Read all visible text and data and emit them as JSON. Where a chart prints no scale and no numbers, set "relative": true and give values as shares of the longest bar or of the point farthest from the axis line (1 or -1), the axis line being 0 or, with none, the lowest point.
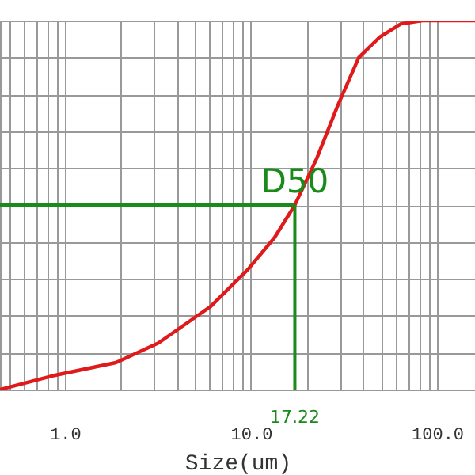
{
  "chart_data": {
    "type": "line",
    "xlabel": "Size(um)",
    "log": "x",
    "relative": true,
    "grid": true,
    "marker": "none",
    "line_style": "solid",
    "xlim": [
      0.448,
      160
    ],
    "xticks": [
      {
        "value": 0.5,
        "label": null
      },
      {
        "value": 0.6,
        "label": null
      },
      {
        "value": 0.7,
        "label": null
      },
      {
        "value": 0.8,
        "label": null
      },
      {
        "value": 0.9,
        "label": null
      },
      {
        "value": 1,
        "label": "1.0"
      },
      {
        "value": 2,
        "label": null
      },
      {
        "value": 3,
        "label": null
      },
      {
        "value": 4,
        "label": null
      },
      {
        "value": 5,
        "label": null
      },
      {
        "value": 6,
        "label": null
      },
      {
        "value": 7,
        "label": null
      },
      {
        "value": 8,
        "label": null
      },
      {
        "value": 9,
        "label": null
      },
      {
        "value": 10,
        "label": "10.0"
      },
      {
        "value": 20,
        "label": null
      },
      {
        "value": 30,
        "label": null
      },
      {
        "value": 40,
        "label": null
      },
      {
        "value": 50,
        "label": null
      },
      {
        "value": 60,
        "label": null
      },
      {
        "value": 70,
        "label": null
      },
      {
        "value": 80,
        "label": null
      },
      {
        "value": 90,
        "label": null
      },
      {
        "value": 100,
        "label": "100.0"
      }
    ],
    "x": [
      0.448,
      0.855,
      1.88,
      3.18,
      6.1,
      9.65,
      13.4,
      17.22,
      22.6,
      29.3,
      38.0,
      49.4,
      64.1,
      83.3,
      160
    ],
    "series": [
      {
        "color": "#e01a1a",
        "values": [
          0.0,
          0.037,
          0.073,
          0.126,
          0.226,
          0.326,
          0.412,
          0.5,
          0.627,
          0.77,
          0.9,
          0.956,
          0.991,
          1.0,
          1.0
        ]
      }
    ],
    "ref_lines": [
      {
        "axis": "y",
        "value": 0.5,
        "label": "D50",
        "color": "#1a8a1a"
      },
      {
        "axis": "x",
        "value": 17.22,
        "label": "17.22",
        "color": "#1a8a1a"
      }
    ]
  }
}
